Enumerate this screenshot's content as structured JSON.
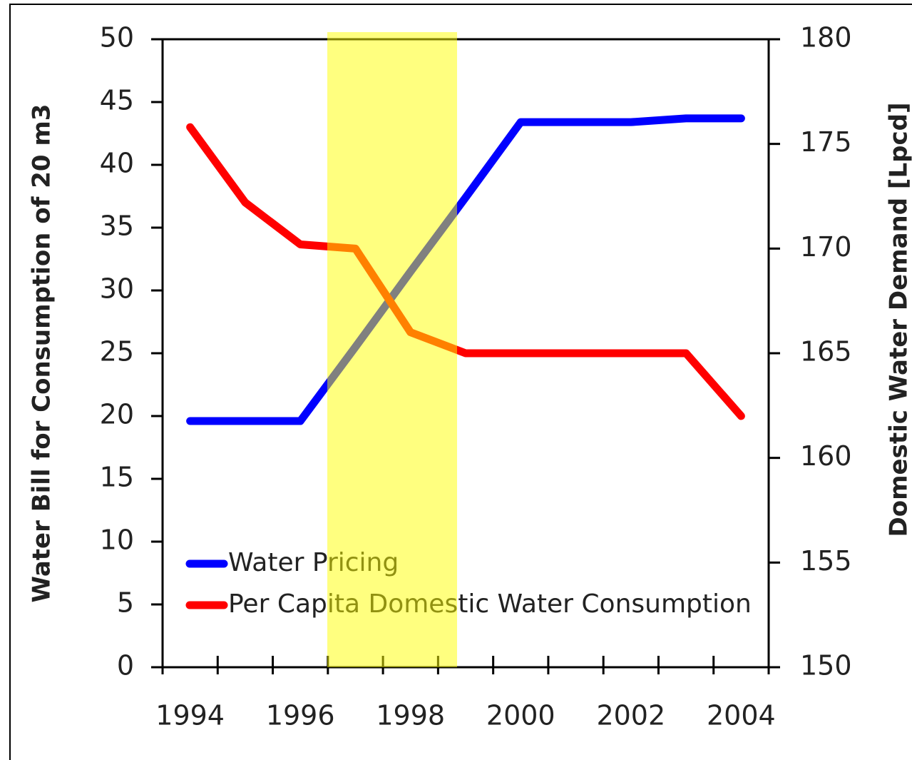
{
  "chart_data": {
    "type": "line",
    "categories": [
      "1994",
      null,
      "1996",
      null,
      "1998",
      null,
      "2000",
      null,
      "2002",
      null,
      "2004"
    ],
    "series": [
      {
        "name": "Water Pricing",
        "color": "#0000ff",
        "axis": "y",
        "values": [
          19.6,
          19.6,
          19.6,
          25.5,
          31.5,
          37.4,
          43.4,
          43.4,
          43.4,
          43.7,
          43.7
        ]
      },
      {
        "name": "Per Capita Domestic Water Consumption",
        "color": "#ff0000",
        "axis": "y2",
        "values": [
          175.8,
          172.2,
          170.2,
          170,
          166,
          165,
          165,
          165,
          165,
          165,
          162
        ]
      }
    ],
    "ylabel": "Water Bill for Consumption of 20 m3",
    "y2label": "Domestic Water Demand [Lpcd]",
    "ylim": [
      0,
      50
    ],
    "yticks": [
      0,
      5,
      10,
      15,
      20,
      25,
      30,
      35,
      40,
      45,
      50
    ],
    "y2lim": [
      150,
      180
    ],
    "y2ticks": [
      150,
      155,
      160,
      165,
      170,
      175,
      180
    ],
    "legend": "lower left"
  }
}
